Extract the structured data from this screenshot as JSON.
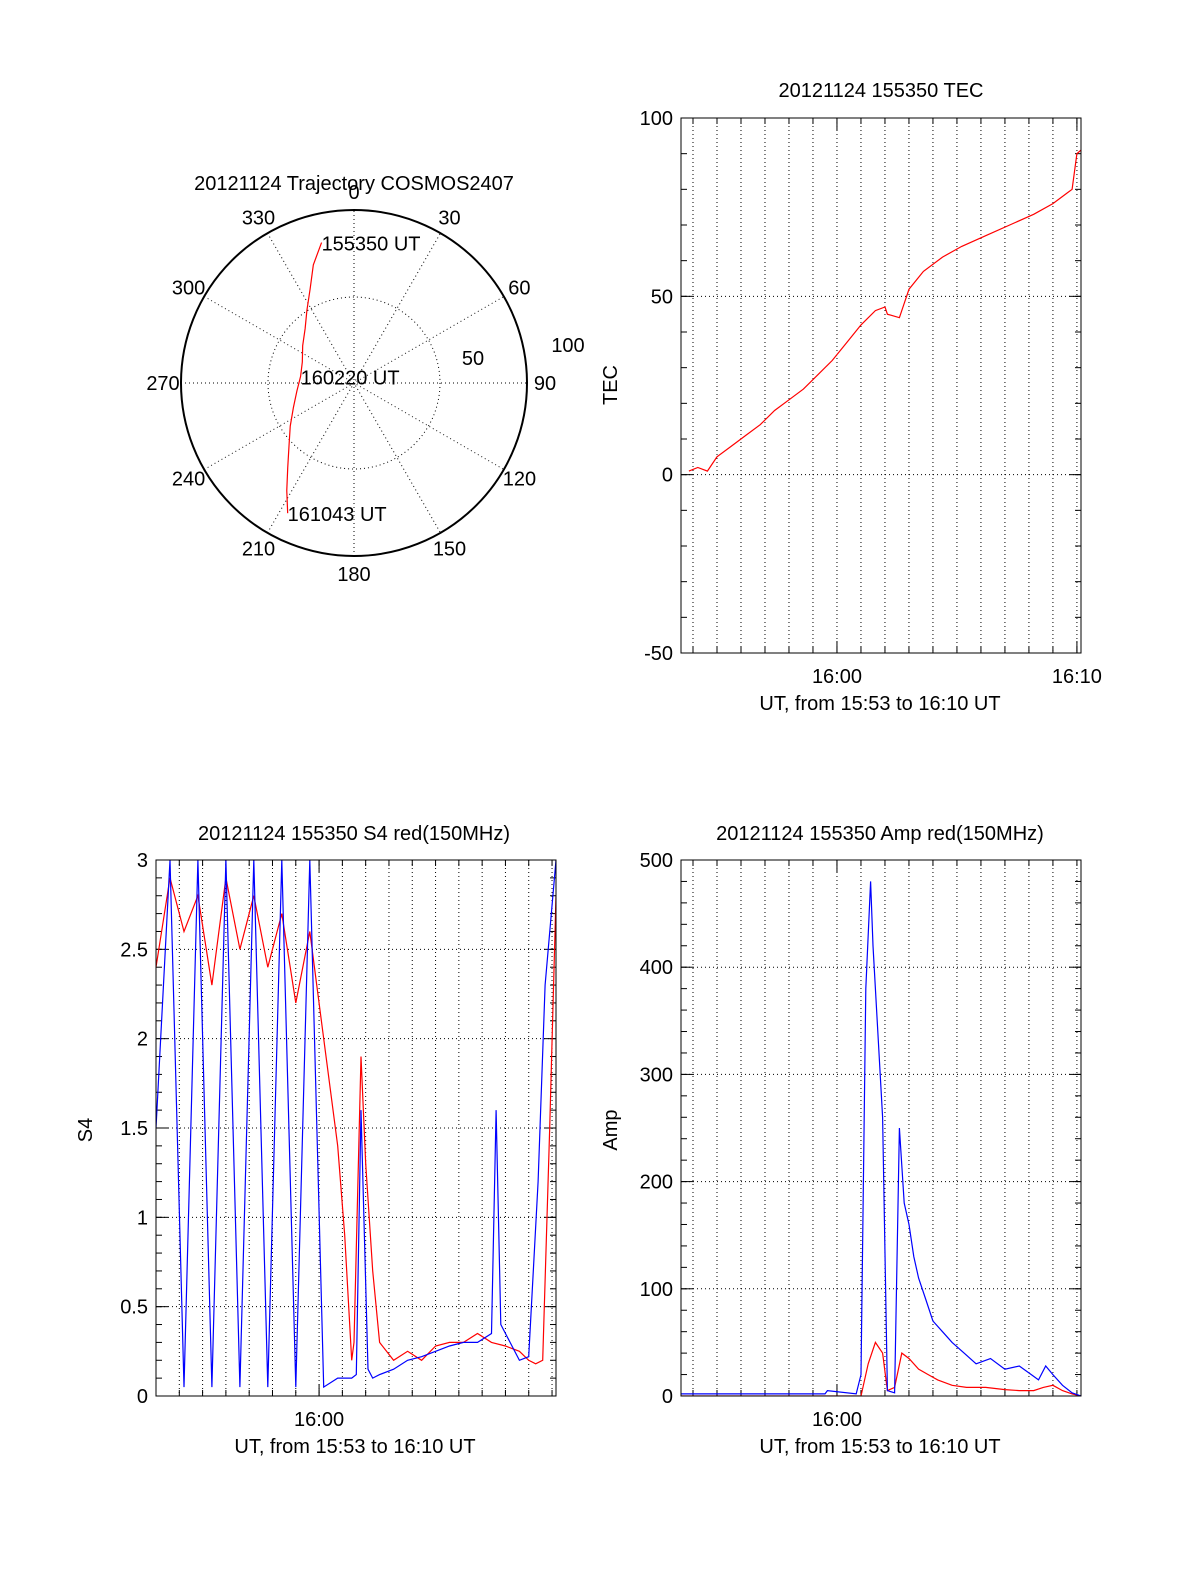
{
  "colors": {
    "red": "#ff0000",
    "blue": "#0000ff",
    "axis": "#000000"
  },
  "chart_data": [
    {
      "id": "trajectory",
      "type": "scatter",
      "title": "20121124 Trajectory COSMOS2407",
      "angle_labels": [
        "0",
        "30",
        "60",
        "90",
        "120",
        "150",
        "180",
        "210",
        "240",
        "270",
        "300",
        "330"
      ],
      "radius_labels": [
        "50",
        "100"
      ],
      "rmax": 90,
      "series": [
        {
          "color": "#ff0000",
          "points_az_el": [
            [
              347,
              15
            ],
            [
              341,
              25
            ],
            [
              335,
              36
            ],
            [
              327,
              45
            ],
            [
              318,
              52
            ],
            [
              306,
              57
            ],
            [
              292,
              61
            ],
            [
              277,
              62
            ],
            [
              262,
              60
            ],
            [
              248,
              56
            ],
            [
              236,
              50
            ],
            [
              226,
              43
            ],
            [
              218,
              34
            ],
            [
              212,
              24
            ],
            [
              207,
              14
            ]
          ]
        }
      ],
      "annotations": [
        {
          "text": "155350 UT",
          "az": 347,
          "el": 15
        },
        {
          "text": "160220 UT",
          "az": 277,
          "el": 62
        },
        {
          "text": "161043 UT",
          "az": 207,
          "el": 14
        }
      ]
    },
    {
      "id": "tec",
      "type": "line",
      "title": "20121124 155350 TEC",
      "xlabel": "UT, from 15:53 to 16:10 UT",
      "ylabel": "TEC",
      "xlim": [
        53.5,
        70.17
      ],
      "ylim": [
        -50,
        100
      ],
      "xticks": [
        {
          "v": 60,
          "label": "16:00"
        },
        {
          "v": 70,
          "label": "16:10"
        }
      ],
      "yticks": [
        -50,
        0,
        50,
        100
      ],
      "series": [
        {
          "color": "#ff0000",
          "x": [
            53.83,
            54.2,
            54.6,
            55.0,
            55.6,
            56.2,
            56.8,
            57.4,
            58.0,
            58.6,
            59.2,
            59.8,
            60.4,
            61.0,
            61.6,
            62.0,
            62.1,
            62.6,
            63.0,
            63.6,
            64.4,
            65.2,
            66.2,
            67.2,
            68.2,
            69.0,
            69.6,
            69.8,
            70.0,
            70.17
          ],
          "y": [
            1,
            2,
            1,
            5,
            8,
            11,
            14,
            18,
            21,
            24,
            28,
            32,
            37,
            42,
            46,
            47,
            45,
            44,
            52,
            57,
            61,
            64,
            67,
            70,
            73,
            76,
            79,
            80,
            90,
            91
          ]
        }
      ]
    },
    {
      "id": "s4",
      "type": "line",
      "title": "20121124 155350 S4 red(150MHz)",
      "xlabel": "UT, from 15:53 to 16:10 UT",
      "ylabel": "S4",
      "xlim": [
        53.0,
        70.17
      ],
      "ylim": [
        0,
        3
      ],
      "xticks": [
        {
          "v": 60,
          "label": "16:00"
        }
      ],
      "yticks": [
        {
          "v": 0,
          "label": "0"
        },
        {
          "v": 0.5,
          "label": "0.5"
        },
        {
          "v": 1,
          "label": "1"
        },
        {
          "v": 1.5,
          "label": "1.5"
        },
        {
          "v": 2,
          "label": "2"
        },
        {
          "v": 2.5,
          "label": "2.5"
        },
        {
          "v": 3,
          "label": "3"
        }
      ],
      "series": [
        {
          "color": "#ff0000",
          "x": [
            53.0,
            53.6,
            54.2,
            54.8,
            55.4,
            56.0,
            56.6,
            57.2,
            57.8,
            58.4,
            59.0,
            59.6,
            60.2,
            60.8,
            61.1,
            61.4,
            61.5,
            61.8,
            62.0,
            62.3,
            62.6,
            63.2,
            63.8,
            64.4,
            65.0,
            65.6,
            66.2,
            66.8,
            67.4,
            68.0,
            68.6,
            69.0,
            69.3,
            69.6,
            69.9,
            70.17
          ],
          "y": [
            2.4,
            2.9,
            2.6,
            2.8,
            2.3,
            2.9,
            2.5,
            2.8,
            2.4,
            2.7,
            2.2,
            2.6,
            2.0,
            1.4,
            0.9,
            0.2,
            0.3,
            1.9,
            1.3,
            0.7,
            0.3,
            0.2,
            0.25,
            0.2,
            0.28,
            0.3,
            0.3,
            0.35,
            0.3,
            0.28,
            0.25,
            0.2,
            0.18,
            0.2,
            1.5,
            2.8
          ]
        },
        {
          "color": "#0000ff",
          "x": [
            53.0,
            53.6,
            54.2,
            54.8,
            55.4,
            56.0,
            56.6,
            57.2,
            57.8,
            58.4,
            59.0,
            59.6,
            60.2,
            60.8,
            61.1,
            61.4,
            61.6,
            61.8,
            62.1,
            62.3,
            62.6,
            63.2,
            63.8,
            64.4,
            65.0,
            65.6,
            66.2,
            66.8,
            67.4,
            67.6,
            67.8,
            68.2,
            68.6,
            69.0,
            69.4,
            69.7,
            70.17
          ],
          "y": [
            1.5,
            3.0,
            0.05,
            3.0,
            0.05,
            3.0,
            0.05,
            3.0,
            0.05,
            3.0,
            0.05,
            3.0,
            0.05,
            0.1,
            0.1,
            0.1,
            0.12,
            1.6,
            0.15,
            0.1,
            0.12,
            0.15,
            0.2,
            0.22,
            0.25,
            0.28,
            0.3,
            0.3,
            0.35,
            1.6,
            0.4,
            0.3,
            0.2,
            0.22,
            1.2,
            2.3,
            3.0
          ]
        }
      ]
    },
    {
      "id": "amp",
      "type": "line",
      "title": "20121124 155350 Amp red(150MHz)",
      "xlabel": "UT, from 15:53 to 16:10 UT",
      "ylabel": "Amp",
      "xlim": [
        53.5,
        70.17
      ],
      "ylim": [
        0,
        500
      ],
      "xticks": [
        {
          "v": 60,
          "label": "16:00"
        }
      ],
      "yticks": [
        0,
        100,
        200,
        300,
        400,
        500
      ],
      "series": [
        {
          "color": "#ff0000",
          "x": [
            53.5,
            61.0,
            61.3,
            61.6,
            61.9,
            62.1,
            62.4,
            62.7,
            63.0,
            63.4,
            63.8,
            64.2,
            64.8,
            65.4,
            66.2,
            67.0,
            67.6,
            68.2,
            68.6,
            69.0,
            69.4,
            69.8,
            70.17
          ],
          "y": [
            0,
            0,
            30,
            50,
            40,
            5,
            8,
            40,
            35,
            25,
            20,
            15,
            10,
            8,
            8,
            6,
            5,
            5,
            8,
            10,
            5,
            2,
            0
          ]
        },
        {
          "color": "#0000ff",
          "x": [
            53.5,
            59.5,
            59.6,
            60.8,
            61.0,
            61.2,
            61.4,
            61.5,
            61.7,
            61.9,
            62.1,
            62.4,
            62.6,
            62.8,
            63.0,
            63.2,
            63.4,
            63.7,
            64.0,
            64.4,
            64.8,
            65.3,
            65.8,
            66.4,
            67.0,
            67.6,
            68.1,
            68.4,
            68.7,
            69.0,
            69.4,
            69.8,
            70.17
          ],
          "y": [
            2,
            2,
            5,
            2,
            20,
            380,
            480,
            420,
            340,
            260,
            5,
            3,
            250,
            180,
            160,
            130,
            110,
            90,
            70,
            60,
            50,
            40,
            30,
            35,
            25,
            28,
            20,
            15,
            28,
            20,
            10,
            3,
            0
          ]
        }
      ]
    }
  ]
}
